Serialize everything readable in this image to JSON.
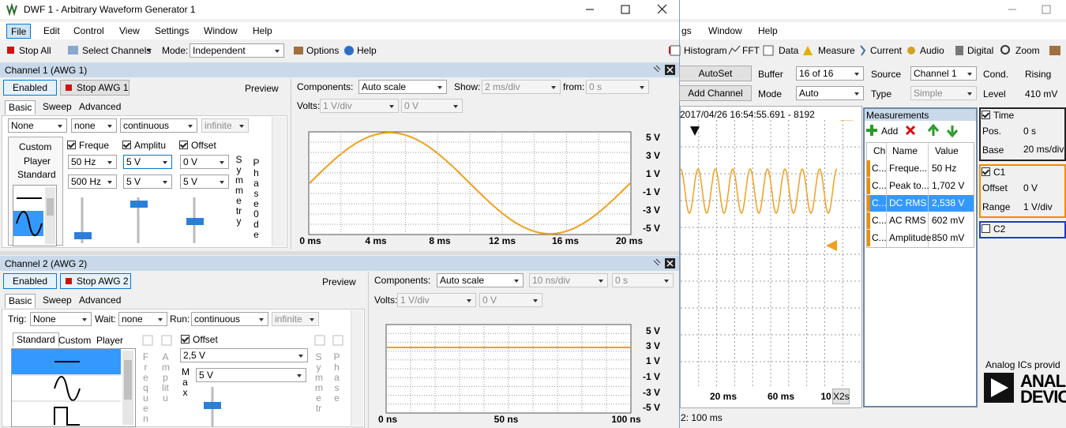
{
  "awg": {
    "title": "DWF 1 - Arbitrary Waveform Generator 1",
    "menu": [
      "File",
      "Edit",
      "Control",
      "View",
      "Settings",
      "Window",
      "Help"
    ],
    "toolbar": {
      "stop_all": "Stop All",
      "select_channels": "Select Channels",
      "mode_label": "Mode:",
      "mode": "Independent",
      "options": "Options",
      "help": "Help"
    },
    "channels": [
      {
        "header": "Channel 1 (AWG 1)",
        "enabled": "Enabled",
        "stop": "Stop AWG 1",
        "preview": "Preview",
        "tabs": [
          "Basic",
          "Sweep",
          "Advanced"
        ],
        "run_row": [
          "None",
          "none",
          "continuous",
          "infinite"
        ],
        "wave_tabs": [
          "Custom",
          "Player",
          "Standard"
        ],
        "params": [
          {
            "label": "Freque",
            "value": "50 Hz",
            "max": "500 Hz"
          },
          {
            "label": "Amplitu",
            "value": "5 V",
            "max": "5 V"
          },
          {
            "label": "Offset",
            "value": "0 V",
            "max": "5 V"
          }
        ],
        "vertical": [
          "Symmetry",
          "Phase 0de"
        ],
        "plot": {
          "components_label": "Components:",
          "components": "Auto scale",
          "show_label": "Show:",
          "show": "2 ms/div",
          "from_label": "from:",
          "from": "0 s",
          "volts_label": "Volts:",
          "volts": "1 V/div",
          "offset": "0 V",
          "status": "Running",
          "y_labels": [
            "5 V",
            "3 V",
            "1 V",
            "-1 V",
            "-3 V",
            "-5 V"
          ],
          "x_labels": [
            "0 ms",
            "4 ms",
            "8 ms",
            "12 ms",
            "16 ms",
            "20 ms"
          ]
        }
      },
      {
        "header": "Channel 2 (AWG 2)",
        "enabled": "Enabled",
        "stop": "Stop AWG 2",
        "preview": "Preview",
        "tabs": [
          "Basic",
          "Sweep",
          "Advanced"
        ],
        "run_row": {
          "trig_label": "Trig:",
          "trig": "None",
          "wait_label": "Wait:",
          "wait": "none",
          "run_label": "Run:",
          "run": "continuous",
          "repeat": "infinite"
        },
        "wave_tabs": [
          "Standard",
          "Custom",
          "Player"
        ],
        "vertical": [
          "Frequen",
          "Amplitu",
          "Symmetr",
          "Phase"
        ],
        "offset_label": "Offset",
        "offset": "2,5 V",
        "max_label": "Max",
        "max": "5 V",
        "plot": {
          "components_label": "Components:",
          "components": "Auto scale",
          "time": "10 ns/div",
          "from": "0 s",
          "volts_label": "Volts:",
          "volts": "1 V/div",
          "offset": "0 V",
          "status": "Running",
          "y_labels": [
            "5 V",
            "3 V",
            "1 V",
            "-1 V",
            "-3 V",
            "-5 V"
          ],
          "x_labels": [
            "0 ns",
            "50 ns",
            "100 ns"
          ]
        }
      }
    ]
  },
  "scope": {
    "menu": [
      "gs",
      "Window",
      "Help"
    ],
    "toolbar": [
      "Histogram",
      "FFT",
      "Data",
      "Measure",
      "Current",
      "Audio",
      "Digital",
      "Zoom"
    ],
    "controls": {
      "autoset": "AutoSet",
      "add_channel": "Add Channel",
      "buffer_label": "Buffer",
      "buffer": "16 of 16",
      "mode_label": "Mode",
      "mode": "Auto",
      "source_label": "Source",
      "source": "Channel 1",
      "type_label": "Type",
      "type": "Simple",
      "cond_label": "Cond.",
      "cond": "Rising",
      "level_label": "Level",
      "level": "410 mV"
    },
    "plot": {
      "timestamp": "2017/04/26 16:54:55.691 - 8192",
      "x_labels": [
        "20 ms",
        "60 ms",
        "10"
      ],
      "zoom": "X2s",
      "status": "2: 100 ms"
    },
    "measurements": {
      "title": "Measurements",
      "add": "Add",
      "columns": [
        "Ch",
        "Name",
        "Value"
      ],
      "rows": [
        [
          "C...",
          "Freque...",
          "50 Hz"
        ],
        [
          "C...",
          "Peak to...",
          "1,702 V"
        ],
        [
          "C...",
          "DC RMS",
          "2,538 V"
        ],
        [
          "C...",
          "AC RMS",
          "602 mV"
        ],
        [
          "C...",
          "Amplitude",
          "850 mV"
        ]
      ]
    },
    "time": {
      "title": "Time",
      "pos_label": "Pos.",
      "pos": "0 s",
      "base_label": "Base",
      "base": "20 ms/div"
    },
    "c1": {
      "title": "C1",
      "offset_label": "Offset",
      "offset": "0 V",
      "range_label": "Range",
      "range": "1 V/div"
    },
    "c2": {
      "title": "C2"
    },
    "brand": {
      "tagline": "Analog ICs provid",
      "logo": [
        "ANAL",
        "DEVIC"
      ]
    }
  }
}
